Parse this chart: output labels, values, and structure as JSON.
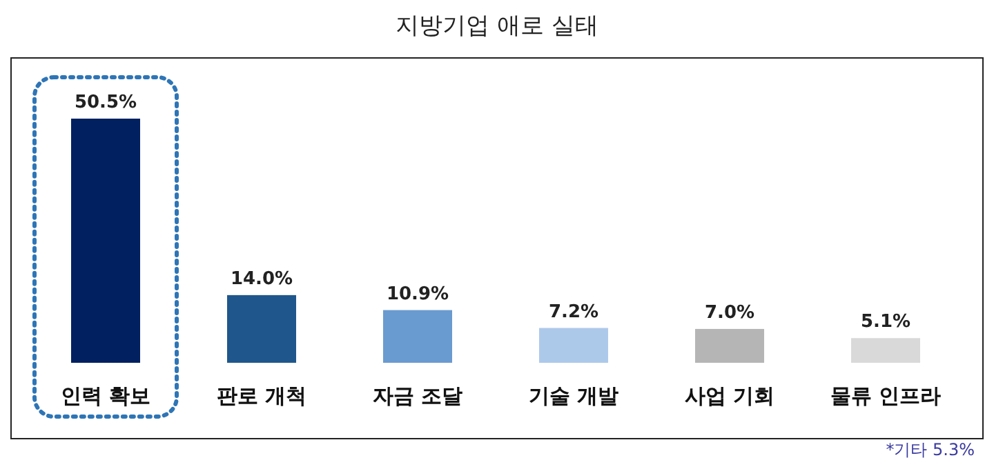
{
  "chart_data": {
    "type": "bar",
    "title": "지방기업 애로 실태",
    "categories": [
      "인력 확보",
      "판로 개척",
      "자금 조달",
      "기술 개발",
      "사업 기회",
      "물류 인프라"
    ],
    "values": [
      50.5,
      14.0,
      10.9,
      7.2,
      7.0,
      5.1
    ],
    "colors": [
      "#002060",
      "#1f578c",
      "#6a9bd0",
      "#adc9ea",
      "#b5b5b5",
      "#d9d9d9"
    ],
    "value_labels": [
      "50.5%",
      "14.0%",
      "10.9%",
      "7.2%",
      "7.0%",
      "5.1%"
    ],
    "annotations": [
      "*기타 5.3%"
    ]
  }
}
